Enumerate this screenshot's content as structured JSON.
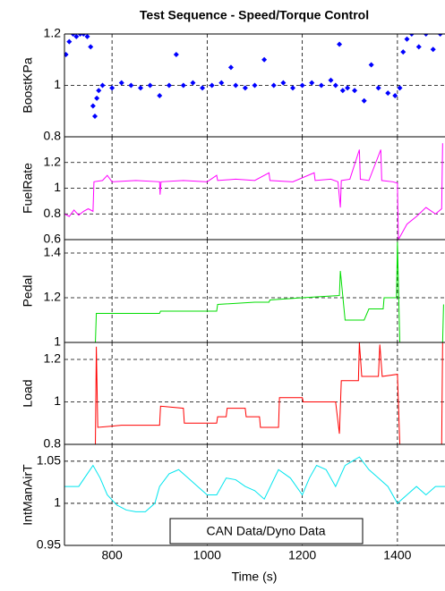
{
  "chart_data": [
    {
      "type": "scatter",
      "title": "Test Sequence - Speed/Torque Control",
      "ylabel": "BoostKPa",
      "color": "#0000ff",
      "xlim": [
        700,
        1500
      ],
      "xticks": [
        800,
        1000,
        1200,
        1400
      ],
      "ylim": [
        0.8,
        1.2
      ],
      "yticks": [
        0.8,
        1,
        1.2
      ],
      "grid": true,
      "x": [
        703,
        710,
        718,
        725,
        733,
        740,
        748,
        755,
        760,
        764,
        768,
        772,
        780,
        800,
        820,
        840,
        860,
        880,
        900,
        920,
        935,
        950,
        970,
        990,
        1010,
        1030,
        1050,
        1060,
        1080,
        1100,
        1120,
        1140,
        1160,
        1180,
        1200,
        1220,
        1240,
        1260,
        1270,
        1278,
        1285,
        1295,
        1310,
        1330,
        1345,
        1360,
        1380,
        1395,
        1405,
        1412,
        1420,
        1430,
        1445,
        1460,
        1475,
        1490
      ],
      "values": [
        1.12,
        1.17,
        1.2,
        1.19,
        1.2,
        1.2,
        1.19,
        1.15,
        0.92,
        0.88,
        0.95,
        0.98,
        1.0,
        0.99,
        1.01,
        1.0,
        0.99,
        1.0,
        0.96,
        1.0,
        1.12,
        1.0,
        1.01,
        0.99,
        1.0,
        1.01,
        1.07,
        1.0,
        0.99,
        1.0,
        1.1,
        1.0,
        1.01,
        0.99,
        1.0,
        1.01,
        1.0,
        1.02,
        1.0,
        1.16,
        0.98,
        0.99,
        0.98,
        0.94,
        1.08,
        0.99,
        0.97,
        0.96,
        0.99,
        1.13,
        1.18,
        1.2,
        1.15,
        1.2,
        1.14,
        1.2
      ]
    },
    {
      "type": "line",
      "ylabel": "FuelRate",
      "color": "#ff00ff",
      "xlim": [
        700,
        1500
      ],
      "xticks": [
        800,
        1000,
        1200,
        1400
      ],
      "ylim": [
        0.6,
        1.4
      ],
      "yticks": [
        0.6,
        0.8,
        1,
        1.2
      ],
      "grid": true,
      "x": [
        700,
        710,
        720,
        730,
        740,
        750,
        760,
        762,
        780,
        790,
        800,
        850,
        900,
        901,
        903,
        950,
        1000,
        1020,
        1022,
        1060,
        1100,
        1130,
        1132,
        1180,
        1225,
        1227,
        1260,
        1275,
        1280,
        1282,
        1300,
        1320,
        1322,
        1340,
        1365,
        1367,
        1390,
        1400,
        1402,
        1420,
        1440,
        1460,
        1480,
        1493,
        1495
      ],
      "values": [
        0.8,
        0.78,
        0.83,
        0.79,
        0.82,
        0.84,
        0.82,
        1.05,
        1.06,
        1.1,
        1.05,
        1.06,
        1.05,
        0.95,
        1.05,
        1.06,
        1.05,
        1.1,
        1.06,
        1.07,
        1.06,
        1.12,
        1.06,
        1.05,
        1.12,
        1.06,
        1.07,
        1.05,
        0.85,
        1.06,
        1.07,
        1.3,
        1.07,
        1.06,
        1.3,
        1.06,
        1.05,
        1.04,
        0.6,
        0.72,
        0.78,
        0.85,
        0.8,
        0.84,
        1.35
      ]
    },
    {
      "type": "line",
      "ylabel": "Pedal",
      "color": "#00dd00",
      "xlim": [
        700,
        1500
      ],
      "xticks": [
        800,
        1000,
        1200,
        1400
      ],
      "ylim": [
        1,
        1.46
      ],
      "yticks": [
        1,
        1.2,
        1.4
      ],
      "grid": true,
      "x": [
        765,
        767,
        800,
        900,
        902,
        960,
        1020,
        1022,
        1100,
        1130,
        1132,
        1200,
        1278,
        1280,
        1290,
        1330,
        1340,
        1370,
        1372,
        1398,
        1400,
        1405,
        1495,
        1497
      ],
      "values": [
        1.0,
        1.13,
        1.13,
        1.13,
        1.14,
        1.14,
        1.14,
        1.17,
        1.18,
        1.18,
        1.19,
        1.2,
        1.21,
        1.32,
        1.1,
        1.1,
        1.15,
        1.15,
        1.2,
        1.2,
        1.45,
        1.0,
        1.0,
        1.17
      ]
    },
    {
      "type": "line",
      "ylabel": "Load",
      "color": "#ff0000",
      "xlim": [
        700,
        1500
      ],
      "xticks": [
        800,
        1000,
        1200,
        1400
      ],
      "ylim": [
        0.8,
        1.28
      ],
      "yticks": [
        0.8,
        1,
        1.2
      ],
      "grid": true,
      "x": [
        765,
        767,
        770,
        820,
        900,
        902,
        950,
        952,
        1020,
        1022,
        1040,
        1042,
        1080,
        1082,
        1110,
        1112,
        1150,
        1152,
        1200,
        1202,
        1270,
        1278,
        1282,
        1290,
        1318,
        1320,
        1325,
        1360,
        1363,
        1368,
        1400,
        1405,
        1493,
        1495
      ],
      "values": [
        0.8,
        1.26,
        0.88,
        0.89,
        0.89,
        0.98,
        0.97,
        0.9,
        0.9,
        0.93,
        0.93,
        0.97,
        0.97,
        0.93,
        0.93,
        0.88,
        0.88,
        1.02,
        1.02,
        1.0,
        1.0,
        0.85,
        1.1,
        1.1,
        1.1,
        1.28,
        1.12,
        1.12,
        1.27,
        1.12,
        1.13,
        0.8,
        0.8,
        1.28
      ]
    },
    {
      "type": "line",
      "ylabel": "IntManAirT",
      "xlabel": "Time (s)",
      "annotation": "CAN Data/Dyno Data",
      "color": "#00e5ee",
      "xlim": [
        700,
        1500
      ],
      "xticks": [
        800,
        1000,
        1200,
        1400
      ],
      "ylim": [
        0.95,
        1.07
      ],
      "yticks": [
        0.95,
        1,
        1.05
      ],
      "grid": true,
      "x": [
        700,
        730,
        760,
        775,
        790,
        810,
        830,
        850,
        870,
        890,
        900,
        920,
        940,
        960,
        980,
        1000,
        1020,
        1040,
        1060,
        1080,
        1100,
        1120,
        1150,
        1175,
        1200,
        1215,
        1230,
        1250,
        1270,
        1290,
        1305,
        1320,
        1340,
        1360,
        1380,
        1400,
        1420,
        1440,
        1460,
        1480,
        1500
      ],
      "values": [
        1.02,
        1.02,
        1.045,
        1.03,
        1.01,
        0.998,
        0.992,
        0.99,
        0.99,
        1.0,
        1.02,
        1.035,
        1.04,
        1.03,
        1.02,
        1.01,
        1.01,
        1.03,
        1.028,
        1.02,
        1.015,
        1.005,
        1.04,
        1.03,
        1.01,
        1.03,
        1.045,
        1.04,
        1.02,
        1.045,
        1.05,
        1.055,
        1.04,
        1.03,
        1.02,
        1.0,
        1.01,
        1.02,
        1.01,
        1.02,
        1.02
      ]
    }
  ]
}
